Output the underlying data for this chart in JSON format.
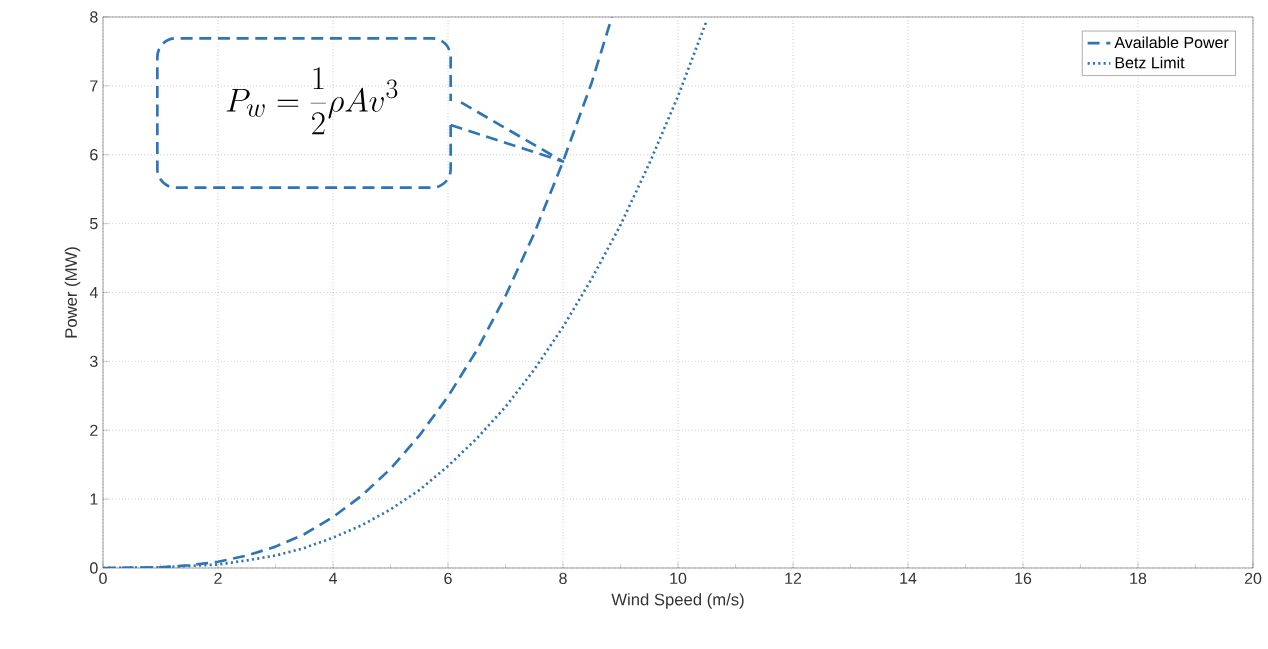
{
  "chart_data": {
    "type": "line",
    "xlabel": "Wind Speed (m/s)",
    "ylabel": "Power (MW)",
    "xlim": [
      0,
      20
    ],
    "ylim": [
      0,
      8
    ],
    "xticks": [
      0,
      2,
      4,
      6,
      8,
      10,
      12,
      14,
      16,
      18,
      20
    ],
    "yticks": [
      0,
      1,
      2,
      3,
      4,
      5,
      6,
      7,
      8
    ],
    "grid": true,
    "legend": "top right",
    "annotations": [
      "P_w = \\frac{1}{2}\\rho A v^3"
    ],
    "series": [
      {
        "name": "Available Power",
        "color": "#2e75b6",
        "line_style": "dashed",
        "x": [
          0,
          1,
          1.5,
          2,
          2.5,
          3,
          3.5,
          4,
          4.5,
          5,
          5.5,
          6,
          6.5,
          7,
          7.5,
          8,
          8.5,
          8.85
        ],
        "values": [
          0,
          0.01,
          0.04,
          0.09,
          0.18,
          0.31,
          0.49,
          0.74,
          1.05,
          1.44,
          1.92,
          2.49,
          3.16,
          3.95,
          4.86,
          5.9,
          7.05,
          8
        ]
      },
      {
        "name": "Betz Limit",
        "color": "#2e75b6",
        "line_style": "dotted",
        "x": [
          0,
          1,
          2,
          2.5,
          3,
          3.5,
          4,
          4.5,
          5,
          5.5,
          6,
          6.5,
          7,
          7.5,
          8,
          8.5,
          9,
          9.5,
          10,
          10.5
        ],
        "values": [
          0,
          0.01,
          0.05,
          0.11,
          0.18,
          0.29,
          0.44,
          0.62,
          0.85,
          1.13,
          1.48,
          1.88,
          2.34,
          2.88,
          3.5,
          4.2,
          4.98,
          5.87,
          6.85,
          7.95
        ]
      }
    ]
  }
}
